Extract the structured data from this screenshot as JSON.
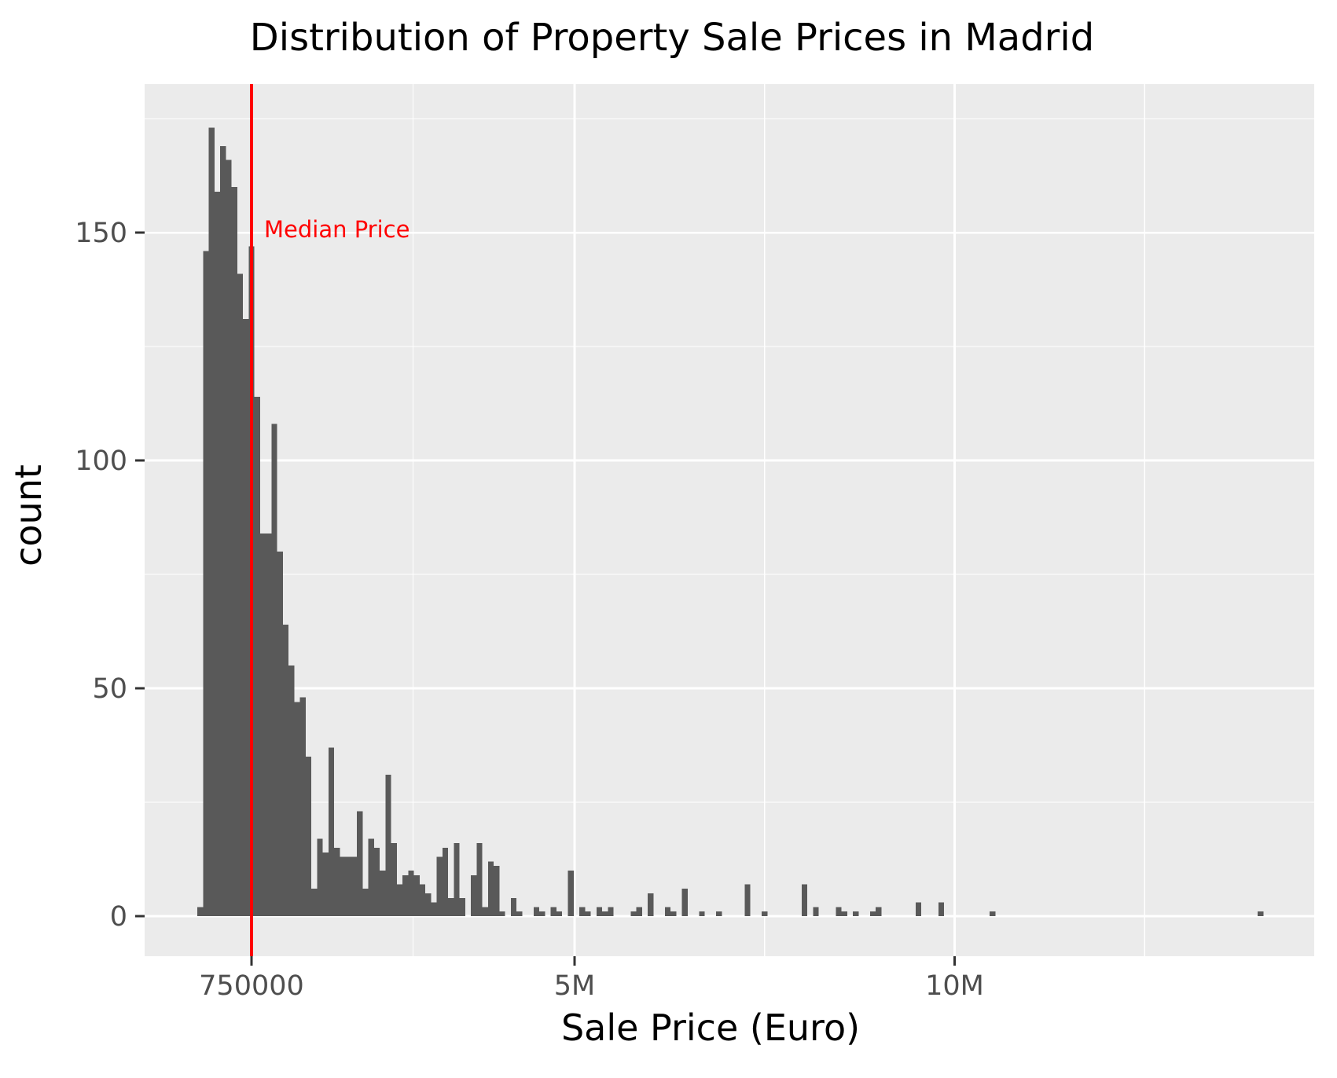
{
  "title": "Distribution of Property Sale Prices in Madrid",
  "annotation": {
    "label": "Median Price",
    "x_value": 750000,
    "color": "#ff0000"
  },
  "chart_data": {
    "type": "bar",
    "subtype": "histogram",
    "title": "Distribution of Property Sale Prices in Madrid",
    "xlabel": "Sale Price (Euro)",
    "ylabel": "count",
    "legend_position": "none",
    "grid": "on",
    "xlim": [
      -656000,
      14731000
    ],
    "ylim": [
      -8.8,
      182.6
    ],
    "x_ticks": [
      {
        "value": 750000,
        "label": "750000"
      },
      {
        "value": 5000000,
        "label": "5M"
      },
      {
        "value": 10000000,
        "label": "10M"
      }
    ],
    "x_minor_gridlines": [
      2875000,
      7500000,
      12500000
    ],
    "y_ticks": [
      {
        "value": 0,
        "label": "0"
      },
      {
        "value": 50,
        "label": "50"
      },
      {
        "value": 100,
        "label": "100"
      },
      {
        "value": 150,
        "label": "150"
      }
    ],
    "y_minor_gridlines": [
      25,
      75,
      125,
      175
    ],
    "median_line": {
      "value": 750000,
      "label": "Median Price"
    },
    "histogram": {
      "bin_start": 37500,
      "bin_width": 75000,
      "counts": [
        2,
        146,
        173,
        159,
        169,
        166,
        160,
        141,
        131,
        147,
        114,
        84,
        84,
        108,
        80,
        64,
        55,
        47,
        48,
        35,
        6,
        17,
        14,
        37,
        15,
        13,
        13,
        13,
        23,
        6,
        17,
        15,
        10,
        31,
        16,
        7,
        9,
        10,
        9,
        7,
        5,
        3,
        13,
        15,
        4,
        16,
        4,
        0,
        9,
        16,
        2,
        12,
        11,
        1,
        0,
        4,
        1,
        0,
        0,
        2,
        1,
        0,
        2,
        1,
        0,
        10,
        0,
        2,
        1,
        0,
        2,
        1,
        2,
        0,
        0,
        0,
        1,
        2,
        0,
        5,
        0,
        0,
        2,
        1,
        0,
        6,
        0,
        0,
        1,
        0,
        0,
        1,
        0,
        0,
        0,
        0,
        7,
        0,
        0,
        1,
        0,
        0,
        0,
        0,
        0,
        0,
        7,
        0,
        2,
        0,
        0,
        0,
        2,
        1,
        0,
        1,
        0,
        0,
        1,
        2,
        0,
        0,
        0,
        0,
        0,
        0,
        3,
        0,
        0,
        0,
        3,
        0,
        0,
        0,
        0,
        0,
        0,
        0,
        0,
        1,
        0,
        0,
        0,
        0,
        0,
        0,
        0,
        0,
        0,
        0,
        0,
        0,
        0,
        0,
        0,
        0,
        0,
        0,
        0,
        0,
        0,
        0,
        0,
        0,
        0,
        0,
        0,
        0,
        0,
        0,
        0,
        0,
        0,
        0,
        0,
        0,
        0,
        0,
        0,
        0,
        0,
        0,
        0,
        0,
        0,
        0,
        1
      ]
    },
    "colors": {
      "bar": "#595959",
      "panel": "#ebebeb",
      "gridline": "#ffffff",
      "median_line": "#ff0000",
      "tick_text": "#4e4e4e",
      "axis_title_text": "#000000",
      "tick_mark": "#333333",
      "background": "#ffffff"
    }
  }
}
